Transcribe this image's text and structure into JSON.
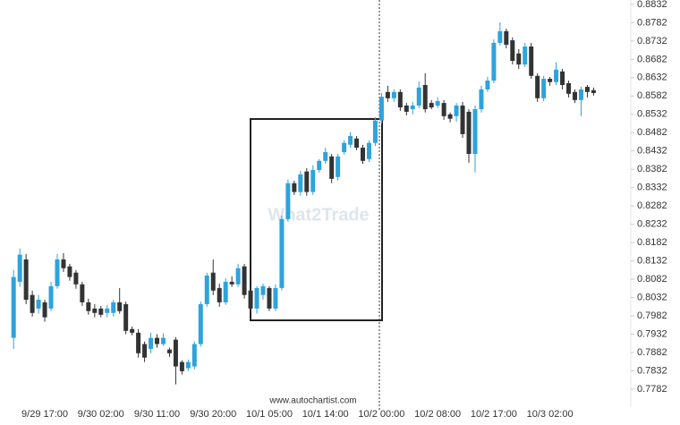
{
  "chart_data": {
    "type": "candlestick",
    "watermark": "What2Trade",
    "source": "www.autochartist.com",
    "up_color": "#2ea3dc",
    "down_color": "#333333",
    "grid": false,
    "ylim": [
      0.7733,
      0.8844
    ],
    "yticks": [
      0.7782,
      0.7832,
      0.7882,
      0.7932,
      0.7982,
      0.8032,
      0.8082,
      0.8132,
      0.8182,
      0.8232,
      0.8282,
      0.8332,
      0.8382,
      0.8432,
      0.8482,
      0.8532,
      0.8582,
      0.8632,
      0.8682,
      0.8732,
      0.8782,
      0.8832
    ],
    "categories": [
      null,
      null,
      null,
      null,
      null,
      "9/29 17:00",
      null,
      null,
      null,
      null,
      null,
      null,
      null,
      null,
      "9/30 02:00",
      null,
      null,
      null,
      null,
      null,
      null,
      null,
      null,
      "9/30 11:00",
      null,
      null,
      null,
      null,
      null,
      null,
      null,
      null,
      "9/30 20:00",
      null,
      null,
      null,
      null,
      null,
      null,
      null,
      null,
      "10/1 05:00",
      null,
      null,
      null,
      null,
      null,
      null,
      null,
      null,
      "10/1 14:00",
      null,
      null,
      null,
      null,
      null,
      null,
      null,
      null,
      "10/2 00:00",
      null,
      null,
      null,
      null,
      null,
      null,
      null,
      null,
      "10/2 08:00",
      null,
      null,
      null,
      null,
      null,
      null,
      null,
      null,
      "10/2 17:00",
      null,
      null,
      null,
      null,
      null,
      null,
      null,
      null,
      "10/3 02:00",
      null,
      null,
      null,
      null,
      null,
      null,
      null
    ],
    "open": [
      0.7922,
      0.8075,
      0.8136,
      0.8039,
      0.8002,
      0.8019,
      0.8002,
      0.8063,
      0.8136,
      0.8117,
      0.81,
      0.8068,
      0.8019,
      0.8002,
      0.8002,
      0.799,
      0.799,
      0.8019,
      0.8014,
      0.7946,
      0.7936,
      0.7905,
      0.7892,
      0.7922,
      0.7905,
      0.789,
      0.7917,
      0.7856,
      0.7839,
      0.7844,
      0.7905,
      0.8014,
      0.81,
      0.8058,
      0.8019,
      0.8075,
      0.8068,
      0.8117,
      0.8051,
      0.8002,
      0.8039,
      0.8058,
      0.8002,
      0.8058,
      0.8246,
      0.8344,
      0.832,
      0.8376,
      0.832,
      0.838,
      0.8405,
      0.8417,
      0.8361,
      0.8429,
      0.8449,
      0.8466,
      0.8441,
      0.841,
      0.8454,
      0.8515,
      0.8593,
      0.8576,
      0.8593,
      0.8556,
      0.8546,
      0.8556,
      0.8612,
      0.8563,
      0.8556,
      0.8563,
      0.8532,
      0.8527,
      0.8556,
      0.8539,
      0.8424,
      0.8546,
      0.86,
      0.8624,
      0.8727,
      0.8759,
      0.8734,
      0.8698,
      0.8668,
      0.8717,
      0.8637,
      0.8576,
      0.8629,
      0.862,
      0.8649,
      0.8617,
      0.8593,
      0.8571,
      0.8607,
      0.8598
    ],
    "high": [
      0.8107,
      0.8166,
      0.8151,
      0.8051,
      0.8039,
      0.8026,
      0.8075,
      0.8151,
      0.8153,
      0.8124,
      0.8107,
      0.8075,
      0.8029,
      0.8014,
      0.8009,
      0.8012,
      0.8026,
      0.8058,
      0.8021,
      0.7953,
      0.7946,
      0.7912,
      0.7936,
      0.7932,
      0.7934,
      0.7895,
      0.7924,
      0.7861,
      0.7863,
      0.7912,
      0.8021,
      0.81,
      0.8136,
      0.807,
      0.8085,
      0.809,
      0.8124,
      0.8124,
      0.8061,
      0.8063,
      0.807,
      0.8063,
      0.8068,
      0.8256,
      0.8354,
      0.8351,
      0.8378,
      0.8385,
      0.8393,
      0.841,
      0.8441,
      0.8424,
      0.8424,
      0.8461,
      0.8483,
      0.8473,
      0.8449,
      0.8461,
      0.8524,
      0.859,
      0.861,
      0.86,
      0.86,
      0.8563,
      0.8566,
      0.8622,
      0.8644,
      0.8571,
      0.8578,
      0.8571,
      0.8537,
      0.8563,
      0.8566,
      0.8546,
      0.8556,
      0.861,
      0.8634,
      0.8737,
      0.8783,
      0.8766,
      0.8742,
      0.871,
      0.8727,
      0.8727,
      0.8644,
      0.8637,
      0.8634,
      0.8674,
      0.8656,
      0.8624,
      0.86,
      0.8607,
      0.8612,
      0.8605
    ],
    "low": [
      0.7892,
      0.8061,
      0.8014,
      0.798,
      0.7988,
      0.7966,
      0.7995,
      0.8056,
      0.8102,
      0.8078,
      0.8056,
      0.8009,
      0.7985,
      0.7978,
      0.7978,
      0.7978,
      0.798,
      0.7988,
      0.7932,
      0.7929,
      0.7868,
      0.7856,
      0.788,
      0.7895,
      0.79,
      0.787,
      0.7795,
      0.7822,
      0.7831,
      0.7836,
      0.7898,
      0.8007,
      0.8039,
      0.8007,
      0.8012,
      0.8061,
      0.8061,
      0.8029,
      0.799,
      0.7988,
      0.8026,
      0.7995,
      0.7995,
      0.8051,
      0.8239,
      0.8312,
      0.831,
      0.831,
      0.8312,
      0.8373,
      0.8397,
      0.8344,
      0.8351,
      0.8422,
      0.8441,
      0.8434,
      0.8397,
      0.8402,
      0.8446,
      0.8507,
      0.8566,
      0.8566,
      0.8541,
      0.8529,
      0.8532,
      0.8549,
      0.8537,
      0.8546,
      0.8549,
      0.8517,
      0.851,
      0.8512,
      0.8468,
      0.84,
      0.8373,
      0.8537,
      0.8593,
      0.8617,
      0.872,
      0.8712,
      0.8668,
      0.8656,
      0.8661,
      0.8629,
      0.8566,
      0.8568,
      0.861,
      0.8612,
      0.86,
      0.8578,
      0.8563,
      0.8527,
      0.8578,
      0.8583
    ],
    "close": [
      0.8088,
      0.8149,
      0.8026,
      0.799,
      0.8026,
      0.7978,
      0.8063,
      0.8136,
      0.8112,
      0.8088,
      0.8068,
      0.8019,
      0.7995,
      0.799,
      0.7985,
      0.8002,
      0.8019,
      0.7995,
      0.7941,
      0.7936,
      0.788,
      0.7868,
      0.7922,
      0.7905,
      0.7922,
      0.788,
      0.7844,
      0.7831,
      0.7856,
      0.7905,
      0.8014,
      0.8092,
      0.8051,
      0.8019,
      0.8075,
      0.8068,
      0.8112,
      0.8039,
      0.8002,
      0.8058,
      0.8063,
      0.8002,
      0.8058,
      0.8246,
      0.8344,
      0.832,
      0.8368,
      0.832,
      0.838,
      0.8405,
      0.8429,
      0.8356,
      0.8417,
      0.8454,
      0.8473,
      0.8441,
      0.8405,
      0.8454,
      0.8515,
      0.858,
      0.8576,
      0.8593,
      0.8551,
      0.8539,
      0.8556,
      0.8605,
      0.8546,
      0.8551,
      0.8568,
      0.8527,
      0.852,
      0.8556,
      0.8478,
      0.8424,
      0.8546,
      0.86,
      0.8624,
      0.8727,
      0.8759,
      0.8722,
      0.8678,
      0.8668,
      0.8717,
      0.8637,
      0.8576,
      0.8629,
      0.862,
      0.8654,
      0.8612,
      0.8588,
      0.8571,
      0.86,
      0.8593,
      0.859
    ]
  }
}
